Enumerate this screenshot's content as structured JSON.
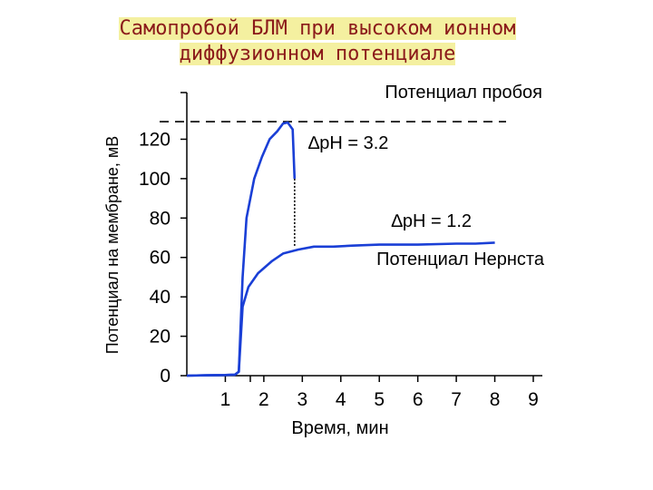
{
  "chart_data": {
    "type": "line",
    "title": [
      "Самопробой БЛМ при высоком ионном",
      "диффузионном потенциале"
    ],
    "xlabel": "Время, мин",
    "ylabel": "Потенциал на мембране, мВ",
    "x_ticks": [
      1,
      2,
      3,
      4,
      5,
      6,
      7,
      8,
      9
    ],
    "y_ticks": [
      0,
      20,
      40,
      60,
      80,
      100,
      120
    ],
    "xlim": [
      0,
      9
    ],
    "ylim": [
      0,
      140
    ],
    "annotations": {
      "breakdown": "Потенциал пробоя",
      "dph_high": "∆pH = 3.2",
      "dph_low": "∆pH = 1.2",
      "nernst": "Потенциал Нернста"
    },
    "breakdown_level": 128,
    "series": [
      {
        "name": "∆pH = 3.2",
        "color": "#1a3fd6",
        "points": [
          [
            0,
            0
          ],
          [
            0.5,
            0.2
          ],
          [
            1,
            0.3
          ],
          [
            1.25,
            0.5
          ],
          [
            1.35,
            2
          ],
          [
            1.45,
            50
          ],
          [
            1.55,
            80
          ],
          [
            1.75,
            100
          ],
          [
            1.95,
            111
          ],
          [
            2.15,
            120
          ],
          [
            2.35,
            124
          ],
          [
            2.5,
            128
          ],
          [
            2.62,
            128.5
          ],
          [
            2.75,
            125
          ],
          [
            2.8,
            100
          ]
        ]
      },
      {
        "name": "∆pH = 1.2",
        "color": "#1a3fd6",
        "points": [
          [
            0,
            0
          ],
          [
            0.5,
            0.2
          ],
          [
            1,
            0.3
          ],
          [
            1.25,
            0.5
          ],
          [
            1.35,
            2
          ],
          [
            1.45,
            35
          ],
          [
            1.6,
            45
          ],
          [
            1.85,
            52
          ],
          [
            2.2,
            58
          ],
          [
            2.5,
            62
          ],
          [
            2.9,
            64
          ],
          [
            3.3,
            65.5
          ],
          [
            3.8,
            65.5
          ],
          [
            4.3,
            66
          ],
          [
            5,
            66.5
          ],
          [
            6,
            66.5
          ],
          [
            7,
            67
          ],
          [
            7.5,
            67
          ],
          [
            8,
            67.5
          ]
        ]
      }
    ]
  }
}
